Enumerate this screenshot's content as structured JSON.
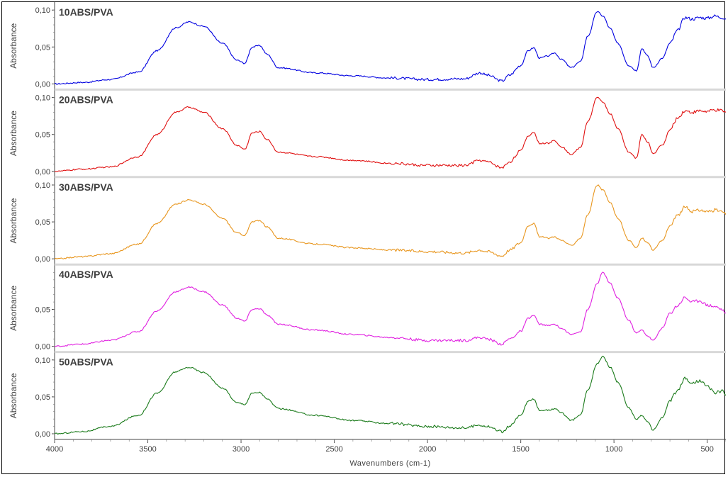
{
  "chart_data": {
    "type": "line",
    "xlabel": "Wavenumbers (cm-1)",
    "ylabel": "Absorbance",
    "xlim": [
      4000,
      400
    ],
    "x_reversed": true,
    "ylim": [
      0,
      0.105
    ],
    "x_ticks": [
      {
        "value": 4000,
        "label": "4000"
      },
      {
        "value": 3500,
        "label": "3500"
      },
      {
        "value": 3000,
        "label": "3000"
      },
      {
        "value": 2500,
        "label": "2500"
      },
      {
        "value": 2000,
        "label": "2000"
      },
      {
        "value": 1500,
        "label": "1500"
      },
      {
        "value": 1000,
        "label": "1000"
      },
      {
        "value": 500,
        "label": "500"
      }
    ],
    "series": [
      {
        "name": "10ABS/PVA",
        "color": "#0000e0",
        "y_ticks": [
          {
            "value": 0.0,
            "label": "0,00"
          },
          {
            "value": 0.05,
            "label": "0,05"
          },
          {
            "value": 0.1,
            "label": "0,10"
          }
        ],
        "points": [
          [
            4000,
            0.0
          ],
          [
            3850,
            0.002
          ],
          [
            3700,
            0.006
          ],
          [
            3550,
            0.016
          ],
          [
            3450,
            0.045
          ],
          [
            3350,
            0.076
          ],
          [
            3280,
            0.084
          ],
          [
            3200,
            0.078
          ],
          [
            3100,
            0.055
          ],
          [
            3020,
            0.032
          ],
          [
            2980,
            0.028
          ],
          [
            2940,
            0.05
          ],
          [
            2900,
            0.052
          ],
          [
            2860,
            0.04
          ],
          [
            2800,
            0.022
          ],
          [
            2600,
            0.015
          ],
          [
            2400,
            0.011
          ],
          [
            2200,
            0.008
          ],
          [
            2000,
            0.006
          ],
          [
            1800,
            0.007
          ],
          [
            1720,
            0.015
          ],
          [
            1680,
            0.012
          ],
          [
            1600,
            0.004
          ],
          [
            1560,
            0.012
          ],
          [
            1500,
            0.025
          ],
          [
            1460,
            0.045
          ],
          [
            1430,
            0.049
          ],
          [
            1400,
            0.035
          ],
          [
            1350,
            0.038
          ],
          [
            1320,
            0.042
          ],
          [
            1280,
            0.033
          ],
          [
            1230,
            0.022
          ],
          [
            1180,
            0.03
          ],
          [
            1140,
            0.065
          ],
          [
            1090,
            0.098
          ],
          [
            1060,
            0.092
          ],
          [
            1020,
            0.075
          ],
          [
            980,
            0.055
          ],
          [
            920,
            0.025
          ],
          [
            880,
            0.018
          ],
          [
            850,
            0.048
          ],
          [
            820,
            0.038
          ],
          [
            790,
            0.022
          ],
          [
            740,
            0.035
          ],
          [
            700,
            0.055
          ],
          [
            660,
            0.072
          ],
          [
            620,
            0.09
          ],
          [
            580,
            0.088
          ],
          [
            540,
            0.09
          ],
          [
            500,
            0.089
          ],
          [
            460,
            0.092
          ],
          [
            420,
            0.09
          ],
          [
            400,
            0.088
          ]
        ]
      },
      {
        "name": "20ABS/PVA",
        "color": "#e01010",
        "y_ticks": [
          {
            "value": 0.0,
            "label": "0,00"
          },
          {
            "value": 0.05,
            "label": "0,05"
          },
          {
            "value": 0.1,
            "label": "0,10"
          }
        ],
        "points": [
          [
            4000,
            0.0
          ],
          [
            3850,
            0.003
          ],
          [
            3700,
            0.006
          ],
          [
            3550,
            0.02
          ],
          [
            3450,
            0.05
          ],
          [
            3350,
            0.08
          ],
          [
            3280,
            0.087
          ],
          [
            3200,
            0.08
          ],
          [
            3100,
            0.058
          ],
          [
            3020,
            0.035
          ],
          [
            2980,
            0.03
          ],
          [
            2940,
            0.052
          ],
          [
            2900,
            0.054
          ],
          [
            2860,
            0.043
          ],
          [
            2800,
            0.026
          ],
          [
            2600,
            0.02
          ],
          [
            2400,
            0.015
          ],
          [
            2200,
            0.011
          ],
          [
            2000,
            0.008
          ],
          [
            1800,
            0.008
          ],
          [
            1720,
            0.015
          ],
          [
            1680,
            0.013
          ],
          [
            1600,
            0.005
          ],
          [
            1560,
            0.013
          ],
          [
            1500,
            0.028
          ],
          [
            1460,
            0.048
          ],
          [
            1430,
            0.053
          ],
          [
            1400,
            0.038
          ],
          [
            1350,
            0.038
          ],
          [
            1320,
            0.042
          ],
          [
            1280,
            0.033
          ],
          [
            1230,
            0.023
          ],
          [
            1180,
            0.032
          ],
          [
            1140,
            0.068
          ],
          [
            1090,
            0.1
          ],
          [
            1060,
            0.094
          ],
          [
            1020,
            0.078
          ],
          [
            980,
            0.058
          ],
          [
            920,
            0.026
          ],
          [
            880,
            0.018
          ],
          [
            850,
            0.05
          ],
          [
            820,
            0.04
          ],
          [
            790,
            0.024
          ],
          [
            740,
            0.036
          ],
          [
            700,
            0.056
          ],
          [
            660,
            0.072
          ],
          [
            620,
            0.082
          ],
          [
            580,
            0.08
          ],
          [
            540,
            0.082
          ],
          [
            500,
            0.081
          ],
          [
            460,
            0.083
          ],
          [
            420,
            0.082
          ],
          [
            400,
            0.08
          ]
        ]
      },
      {
        "name": "30ABS/PVA",
        "color": "#e8961e",
        "y_ticks": [
          {
            "value": 0.0,
            "label": "0,00"
          },
          {
            "value": 0.05,
            "label": "0,05"
          },
          {
            "value": 0.1,
            "label": "0,10"
          }
        ],
        "points": [
          [
            4000,
            0.0
          ],
          [
            3850,
            0.003
          ],
          [
            3700,
            0.007
          ],
          [
            3550,
            0.02
          ],
          [
            3450,
            0.048
          ],
          [
            3350,
            0.074
          ],
          [
            3280,
            0.08
          ],
          [
            3200,
            0.074
          ],
          [
            3100,
            0.055
          ],
          [
            3020,
            0.035
          ],
          [
            2980,
            0.032
          ],
          [
            2940,
            0.05
          ],
          [
            2900,
            0.052
          ],
          [
            2860,
            0.043
          ],
          [
            2800,
            0.028
          ],
          [
            2600,
            0.02
          ],
          [
            2400,
            0.015
          ],
          [
            2200,
            0.012
          ],
          [
            2000,
            0.01
          ],
          [
            1800,
            0.008
          ],
          [
            1720,
            0.012
          ],
          [
            1680,
            0.01
          ],
          [
            1600,
            0.004
          ],
          [
            1560,
            0.012
          ],
          [
            1500,
            0.022
          ],
          [
            1460,
            0.045
          ],
          [
            1430,
            0.048
          ],
          [
            1400,
            0.03
          ],
          [
            1350,
            0.028
          ],
          [
            1320,
            0.03
          ],
          [
            1280,
            0.025
          ],
          [
            1230,
            0.018
          ],
          [
            1180,
            0.028
          ],
          [
            1140,
            0.06
          ],
          [
            1090,
            0.1
          ],
          [
            1060,
            0.093
          ],
          [
            1020,
            0.076
          ],
          [
            980,
            0.055
          ],
          [
            920,
            0.025
          ],
          [
            880,
            0.015
          ],
          [
            850,
            0.028
          ],
          [
            820,
            0.022
          ],
          [
            790,
            0.012
          ],
          [
            740,
            0.025
          ],
          [
            700,
            0.045
          ],
          [
            660,
            0.058
          ],
          [
            620,
            0.07
          ],
          [
            580,
            0.064
          ],
          [
            540,
            0.066
          ],
          [
            500,
            0.064
          ],
          [
            460,
            0.066
          ],
          [
            420,
            0.064
          ],
          [
            400,
            0.06
          ]
        ]
      },
      {
        "name": "40ABS/PVA",
        "color": "#e020e0",
        "y_ticks": [
          {
            "value": 0.0,
            "label": "0,00"
          },
          {
            "value": 0.05,
            "label": "0,05"
          }
        ],
        "points": [
          [
            4000,
            0.0
          ],
          [
            3850,
            0.003
          ],
          [
            3700,
            0.008
          ],
          [
            3550,
            0.02
          ],
          [
            3450,
            0.048
          ],
          [
            3350,
            0.074
          ],
          [
            3280,
            0.08
          ],
          [
            3200,
            0.074
          ],
          [
            3100,
            0.056
          ],
          [
            3020,
            0.038
          ],
          [
            2980,
            0.034
          ],
          [
            2940,
            0.05
          ],
          [
            2900,
            0.051
          ],
          [
            2860,
            0.042
          ],
          [
            2800,
            0.03
          ],
          [
            2600,
            0.022
          ],
          [
            2400,
            0.016
          ],
          [
            2200,
            0.012
          ],
          [
            2000,
            0.008
          ],
          [
            1800,
            0.008
          ],
          [
            1720,
            0.012
          ],
          [
            1680,
            0.01
          ],
          [
            1600,
            0.003
          ],
          [
            1560,
            0.01
          ],
          [
            1500,
            0.02
          ],
          [
            1460,
            0.038
          ],
          [
            1430,
            0.042
          ],
          [
            1400,
            0.03
          ],
          [
            1350,
            0.028
          ],
          [
            1320,
            0.03
          ],
          [
            1280,
            0.024
          ],
          [
            1230,
            0.016
          ],
          [
            1180,
            0.02
          ],
          [
            1140,
            0.05
          ],
          [
            1090,
            0.085
          ],
          [
            1060,
            0.1
          ],
          [
            1020,
            0.085
          ],
          [
            980,
            0.065
          ],
          [
            920,
            0.035
          ],
          [
            880,
            0.018
          ],
          [
            850,
            0.022
          ],
          [
            820,
            0.014
          ],
          [
            790,
            0.008
          ],
          [
            740,
            0.025
          ],
          [
            700,
            0.045
          ],
          [
            660,
            0.055
          ],
          [
            620,
            0.066
          ],
          [
            580,
            0.06
          ],
          [
            540,
            0.062
          ],
          [
            500,
            0.056
          ],
          [
            460,
            0.054
          ],
          [
            420,
            0.05
          ],
          [
            400,
            0.045
          ]
        ]
      },
      {
        "name": "50ABS/PVA",
        "color": "#1a7a1a",
        "y_ticks": [
          {
            "value": 0.0,
            "label": "0,00"
          },
          {
            "value": 0.05,
            "label": "0,05"
          },
          {
            "value": 0.1,
            "label": "0,10"
          }
        ],
        "points": [
          [
            4000,
            0.0
          ],
          [
            3850,
            0.003
          ],
          [
            3700,
            0.01
          ],
          [
            3550,
            0.025
          ],
          [
            3450,
            0.055
          ],
          [
            3350,
            0.084
          ],
          [
            3280,
            0.09
          ],
          [
            3200,
            0.083
          ],
          [
            3100,
            0.062
          ],
          [
            3020,
            0.042
          ],
          [
            2980,
            0.04
          ],
          [
            2940,
            0.055
          ],
          [
            2900,
            0.056
          ],
          [
            2860,
            0.047
          ],
          [
            2800,
            0.034
          ],
          [
            2600,
            0.025
          ],
          [
            2400,
            0.018
          ],
          [
            2200,
            0.014
          ],
          [
            2000,
            0.01
          ],
          [
            1800,
            0.008
          ],
          [
            1720,
            0.012
          ],
          [
            1680,
            0.01
          ],
          [
            1600,
            0.003
          ],
          [
            1560,
            0.01
          ],
          [
            1500,
            0.025
          ],
          [
            1460,
            0.044
          ],
          [
            1430,
            0.047
          ],
          [
            1400,
            0.032
          ],
          [
            1350,
            0.032
          ],
          [
            1320,
            0.034
          ],
          [
            1280,
            0.028
          ],
          [
            1230,
            0.018
          ],
          [
            1180,
            0.025
          ],
          [
            1140,
            0.06
          ],
          [
            1090,
            0.095
          ],
          [
            1060,
            0.105
          ],
          [
            1020,
            0.09
          ],
          [
            980,
            0.07
          ],
          [
            920,
            0.035
          ],
          [
            880,
            0.02
          ],
          [
            850,
            0.025
          ],
          [
            820,
            0.016
          ],
          [
            790,
            0.005
          ],
          [
            740,
            0.022
          ],
          [
            700,
            0.045
          ],
          [
            660,
            0.058
          ],
          [
            620,
            0.075
          ],
          [
            580,
            0.068
          ],
          [
            540,
            0.072
          ],
          [
            500,
            0.064
          ],
          [
            460,
            0.056
          ],
          [
            420,
            0.058
          ],
          [
            400,
            0.052
          ]
        ]
      }
    ]
  }
}
